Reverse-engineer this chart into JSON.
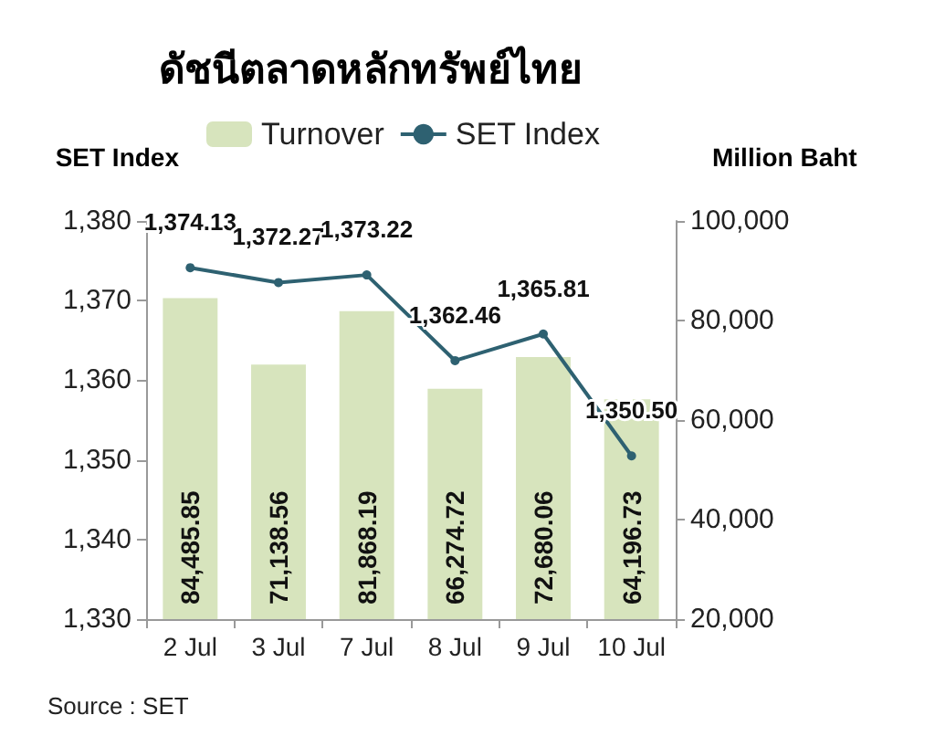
{
  "chart_data": {
    "type": "bar",
    "title": "ดัชนีตลาดหลักทรัพย์ไทย",
    "ylabel": "SET Index",
    "y2label": "Million Baht",
    "categories": [
      "2 Jul",
      "3 Jul",
      "7 Jul",
      "8 Jul",
      "9 Jul",
      "10 Jul"
    ],
    "series": [
      {
        "name": "Turnover",
        "axis": "y2",
        "color": "#d7e4bd",
        "values": [
          84485.85,
          71138.56,
          81868.19,
          66274.72,
          72680.06,
          64196.73
        ],
        "value_labels": [
          "84,485.85",
          "71,138.56",
          "81,868.19",
          "66,274.72",
          "72,680.06",
          "64,196.73"
        ]
      },
      {
        "name": "SET Index",
        "type": "line",
        "axis": "y",
        "color": "#2e6171",
        "values": [
          1374.13,
          1372.27,
          1373.22,
          1362.46,
          1365.81,
          1350.5
        ],
        "value_labels": [
          "1,374.13",
          "1,372.27",
          "1,373.22",
          "1,362.46",
          "1,365.81",
          "1,350.50"
        ]
      }
    ],
    "ylim": [
      1330,
      1380
    ],
    "yticks": [
      {
        "value": 1330,
        "label": "1,330"
      },
      {
        "value": 1340,
        "label": "1,340"
      },
      {
        "value": 1350,
        "label": "1,350"
      },
      {
        "value": 1360,
        "label": "1,360"
      },
      {
        "value": 1370,
        "label": "1,370"
      },
      {
        "value": 1380,
        "label": "1,380"
      }
    ],
    "y2lim": [
      20000,
      100000
    ],
    "y2ticks": [
      {
        "value": 20000,
        "label": "20,000"
      },
      {
        "value": 40000,
        "label": "40,000"
      },
      {
        "value": 60000,
        "label": "60,000"
      },
      {
        "value": 80000,
        "label": "80,000"
      },
      {
        "value": 100000,
        "label": "100,000"
      }
    ],
    "grid": false,
    "legend": "top",
    "marker": "circle",
    "annotations": [
      "Source : SET"
    ]
  }
}
